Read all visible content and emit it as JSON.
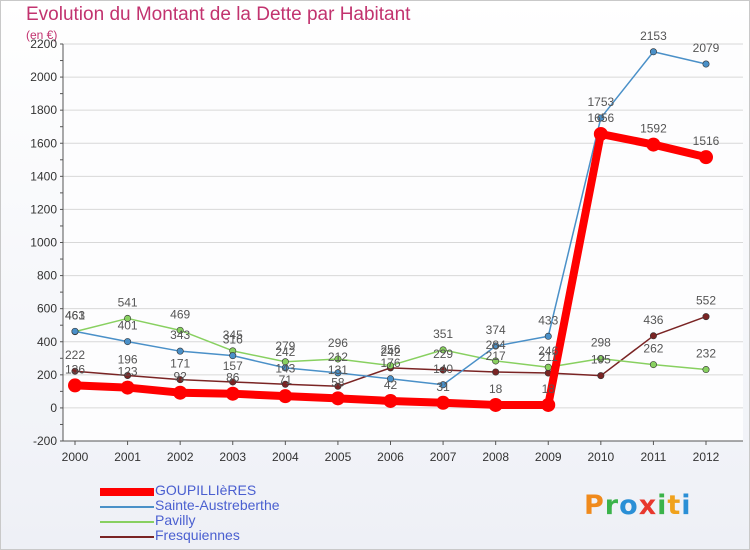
{
  "header": {
    "title": "Evolution du Montant de la Dette par Habitant",
    "unit": "(en €)"
  },
  "logo": {
    "letters": [
      "P",
      "r",
      "o",
      "x",
      "i",
      "t",
      "i"
    ],
    "colors": [
      "#f08a1c",
      "#3bb34a",
      "#2a8fd6",
      "#e8382e",
      "#3bb34a",
      "#f0a21c",
      "#2a8fd6"
    ]
  },
  "chart_data": {
    "type": "line",
    "title": "Evolution du Montant de la Dette par Habitant",
    "ylabel": "(en €)",
    "ylim": [
      -200,
      2200
    ],
    "yticks": [
      -200,
      0,
      200,
      400,
      600,
      800,
      1000,
      1200,
      1400,
      1600,
      1800,
      2000,
      2200
    ],
    "grid": "horizontal",
    "legend": "bottom-left",
    "x": [
      2000,
      2001,
      2002,
      2003,
      2004,
      2005,
      2006,
      2007,
      2008,
      2009,
      2010,
      2011,
      2012
    ],
    "series": [
      {
        "name": "GOUPILLIèRES",
        "color": "#ff0000",
        "values": [
          136,
          123,
          92,
          86,
          71,
          58,
          42,
          31,
          18,
          18,
          1656,
          1592,
          1516
        ]
      },
      {
        "name": "Sainte-Austreberthe",
        "color": "#4a90c8",
        "values": [
          463,
          401,
          343,
          316,
          242,
          212,
          176,
          140,
          374,
          433,
          1753,
          2153,
          2079
        ]
      },
      {
        "name": "Pavilly",
        "color": "#88d060",
        "values": [
          461,
          541,
          469,
          345,
          279,
          296,
          256,
          351,
          284,
          246,
          298,
          262,
          232
        ]
      },
      {
        "name": "Fresquiennes",
        "color": "#7a2424",
        "values": [
          222,
          196,
          171,
          157,
          143,
          131,
          242,
          229,
          217,
          211,
          195,
          436,
          552
        ]
      }
    ]
  }
}
